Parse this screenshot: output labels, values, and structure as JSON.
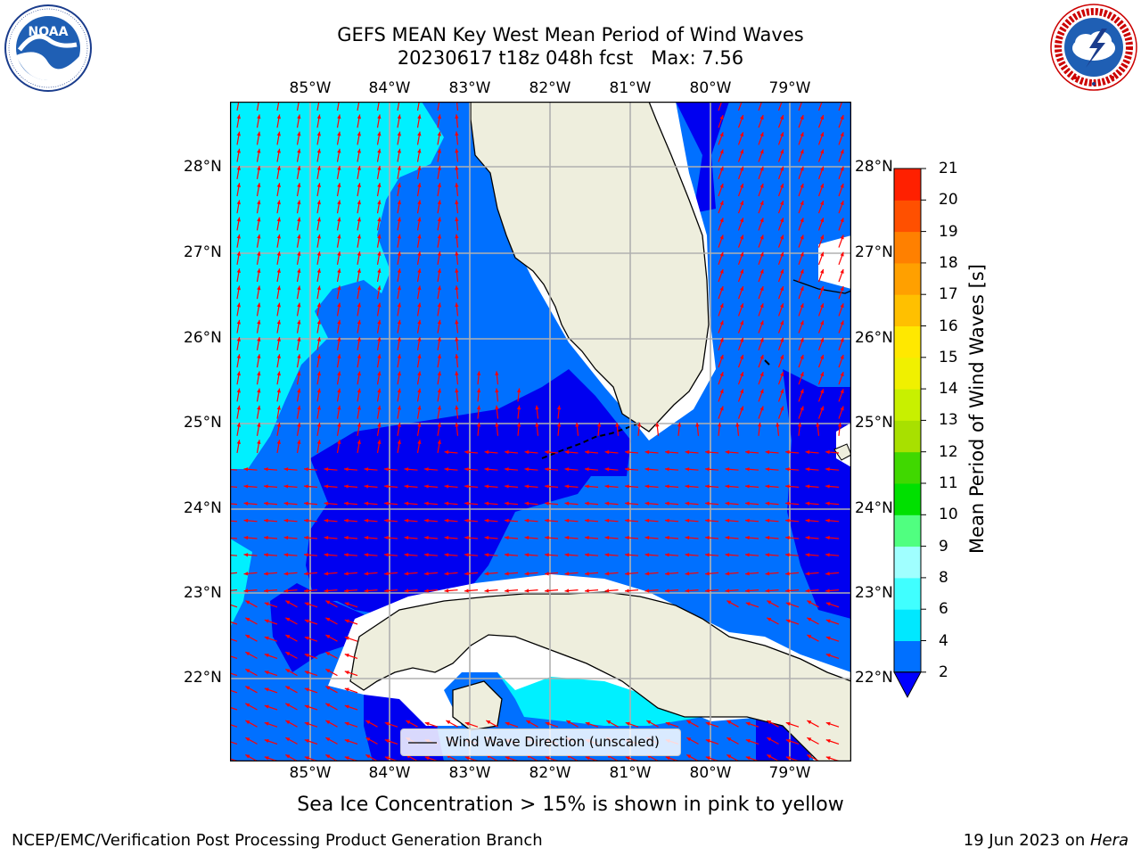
{
  "title": {
    "line1": "GEFS MEAN Key West Mean Period of Wind Waves",
    "line2": "20230617 t18z 048h fcst   Max: 7.56"
  },
  "logos": {
    "left": {
      "icon": "noaa-logo",
      "text": "NOAA",
      "ring_text": "NATIONAL OCEANIC AND ATMOSPHERIC ADMINISTRATION · U.S. DEPARTMENT OF COMMERCE"
    },
    "right": {
      "icon": "nws-logo",
      "ring_text": "NATIONAL WEATHER SERVICE"
    }
  },
  "map": {
    "lon_ticks": [
      "85°W",
      "84°W",
      "83°W",
      "82°W",
      "81°W",
      "80°W",
      "79°W"
    ],
    "lat_ticks": [
      "28°N",
      "27°N",
      "26°N",
      "25°N",
      "24°N",
      "23°N",
      "22°N"
    ],
    "legend_label": "Wind Wave Direction (unscaled)",
    "land_color": "#eeeedd",
    "arrow_color": "#ff0000",
    "coast_color": "#000000",
    "grid_color": "#b0b0b0"
  },
  "colorbar": {
    "title": "Mean Period of Wind Waves [s]",
    "tick_labels": [
      "2",
      "4",
      "6",
      "8",
      "9",
      "10",
      "11",
      "12",
      "13",
      "14",
      "15",
      "16",
      "17",
      "18",
      "19",
      "20",
      "21"
    ],
    "level_colors": [
      "#0000ff",
      "#0070ff",
      "#00e8ff",
      "#40ffff",
      "#a0ffff",
      "#50ff80",
      "#00e000",
      "#40d800",
      "#a8e000",
      "#c8f000",
      "#f0f000",
      "#ffe800",
      "#ffc000",
      "#ffa000",
      "#ff8000",
      "#ff5000",
      "#ff2000",
      "#ff0000"
    ]
  },
  "note": "Sea Ice Concentration > 15% is shown in pink to yellow",
  "footer": {
    "left": "NCEP/EMC/Verification Post Processing Product Generation Branch",
    "right_date": "19 Jun 2023 on ",
    "right_host": "Hera"
  }
}
